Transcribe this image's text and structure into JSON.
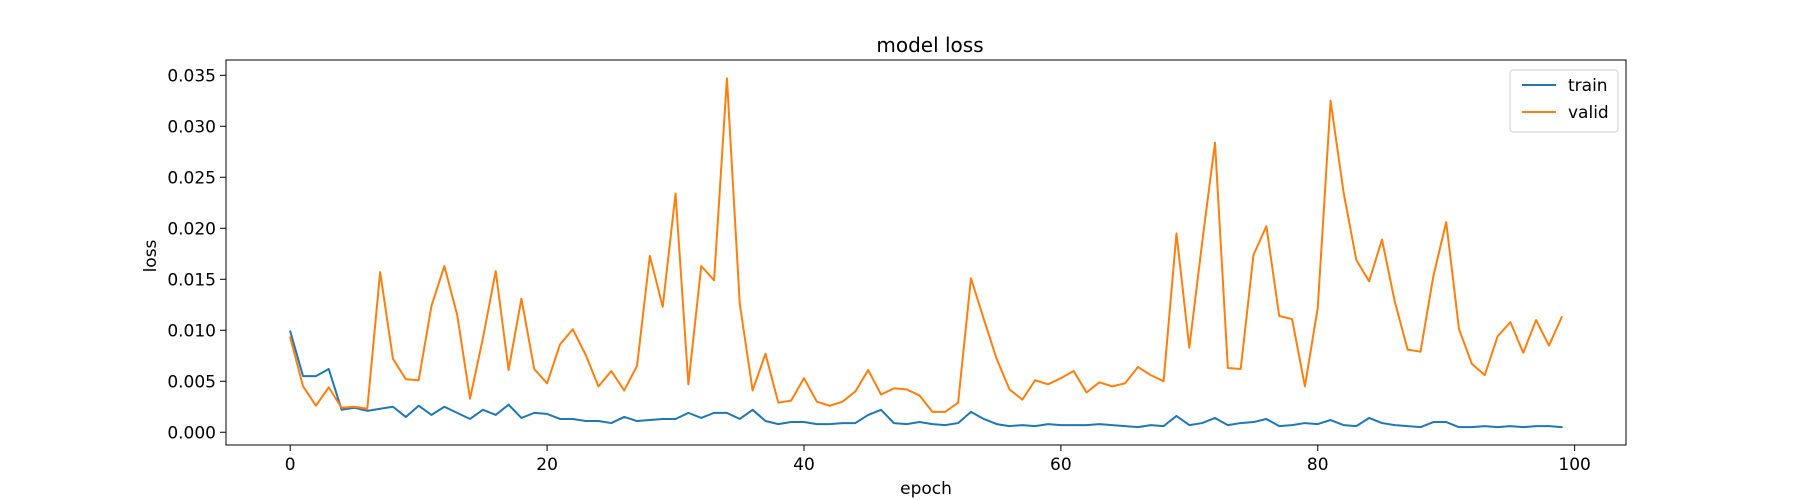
{
  "chart_data": {
    "type": "line",
    "title": "model loss",
    "xlabel": "epoch",
    "ylabel": "loss",
    "xlim": [
      -5,
      104
    ],
    "ylim": [
      -0.00125,
      0.0365
    ],
    "xticks": [
      0,
      20,
      40,
      60,
      80,
      100
    ],
    "yticks": [
      0.0,
      0.005,
      0.01,
      0.015,
      0.02,
      0.025,
      0.03,
      0.035
    ],
    "ytick_labels": [
      "0.000",
      "0.005",
      "0.010",
      "0.015",
      "0.020",
      "0.025",
      "0.030",
      "0.035"
    ],
    "grid": false,
    "legend": "top-right",
    "x": [
      0,
      1,
      2,
      3,
      4,
      5,
      6,
      7,
      8,
      9,
      10,
      11,
      12,
      13,
      14,
      15,
      16,
      17,
      18,
      19,
      20,
      21,
      22,
      23,
      24,
      25,
      26,
      27,
      28,
      29,
      30,
      31,
      32,
      33,
      34,
      35,
      36,
      37,
      38,
      39,
      40,
      41,
      42,
      43,
      44,
      45,
      46,
      47,
      48,
      49,
      50,
      51,
      52,
      53,
      54,
      55,
      56,
      57,
      58,
      59,
      60,
      61,
      62,
      63,
      64,
      65,
      66,
      67,
      68,
      69,
      70,
      71,
      72,
      73,
      74,
      75,
      76,
      77,
      78,
      79,
      80,
      81,
      82,
      83,
      84,
      85,
      86,
      87,
      88,
      89,
      90,
      91,
      92,
      93,
      94,
      95,
      96,
      97,
      98,
      99
    ],
    "series": [
      {
        "name": "train",
        "color": "#1f77b4",
        "values": [
          0.0099,
          0.0055,
          0.0055,
          0.0062,
          0.0022,
          0.0024,
          0.0021,
          0.0023,
          0.0025,
          0.0015,
          0.0026,
          0.0017,
          0.0025,
          0.0019,
          0.0013,
          0.0022,
          0.0017,
          0.0027,
          0.0014,
          0.0019,
          0.0018,
          0.0013,
          0.0013,
          0.0011,
          0.0011,
          0.0009,
          0.0015,
          0.0011,
          0.0012,
          0.0013,
          0.0013,
          0.0019,
          0.0014,
          0.0019,
          0.0019,
          0.0013,
          0.0022,
          0.0011,
          0.0008,
          0.001,
          0.001,
          0.0008,
          0.0008,
          0.0009,
          0.0009,
          0.0017,
          0.0022,
          0.0009,
          0.0008,
          0.001,
          0.0008,
          0.0007,
          0.0009,
          0.002,
          0.0013,
          0.0008,
          0.0006,
          0.0007,
          0.0006,
          0.0008,
          0.0007,
          0.0007,
          0.0007,
          0.0008,
          0.0007,
          0.0006,
          0.0005,
          0.0007,
          0.0006,
          0.0016,
          0.0007,
          0.0009,
          0.0014,
          0.0007,
          0.0009,
          0.001,
          0.0013,
          0.0006,
          0.0007,
          0.0009,
          0.0008,
          0.0012,
          0.0007,
          0.0006,
          0.0014,
          0.0009,
          0.0007,
          0.0006,
          0.0005,
          0.001,
          0.001,
          0.0005,
          0.0005,
          0.0006,
          0.0005,
          0.0006,
          0.0005,
          0.0006,
          0.0006,
          0.0005
        ]
      },
      {
        "name": "valid",
        "color": "#ff7f0e",
        "values": [
          0.0093,
          0.0045,
          0.0026,
          0.0044,
          0.0024,
          0.0025,
          0.0023,
          0.0157,
          0.0072,
          0.0052,
          0.0051,
          0.0124,
          0.0163,
          0.0115,
          0.0033,
          0.0092,
          0.0158,
          0.0061,
          0.0131,
          0.0062,
          0.0048,
          0.0086,
          0.0101,
          0.0076,
          0.0045,
          0.006,
          0.0041,
          0.0065,
          0.0173,
          0.0123,
          0.0234,
          0.0047,
          0.0163,
          0.0149,
          0.0347,
          0.0126,
          0.0041,
          0.0077,
          0.0029,
          0.0031,
          0.0053,
          0.003,
          0.0026,
          0.003,
          0.004,
          0.0061,
          0.0037,
          0.0043,
          0.0042,
          0.0036,
          0.002,
          0.002,
          0.0029,
          0.0151,
          0.0111,
          0.0072,
          0.0042,
          0.0032,
          0.0051,
          0.0047,
          0.0053,
          0.006,
          0.0039,
          0.0049,
          0.0045,
          0.0048,
          0.0064,
          0.0056,
          0.005,
          0.0195,
          0.0083,
          0.0186,
          0.0284,
          0.0063,
          0.0062,
          0.0174,
          0.0202,
          0.0114,
          0.0111,
          0.0045,
          0.0122,
          0.0325,
          0.0236,
          0.0169,
          0.0148,
          0.0189,
          0.0128,
          0.0081,
          0.0079,
          0.0153,
          0.0206,
          0.0101,
          0.0067,
          0.0056,
          0.0094,
          0.0108,
          0.0078,
          0.011,
          0.0085,
          0.0113
        ]
      }
    ]
  }
}
